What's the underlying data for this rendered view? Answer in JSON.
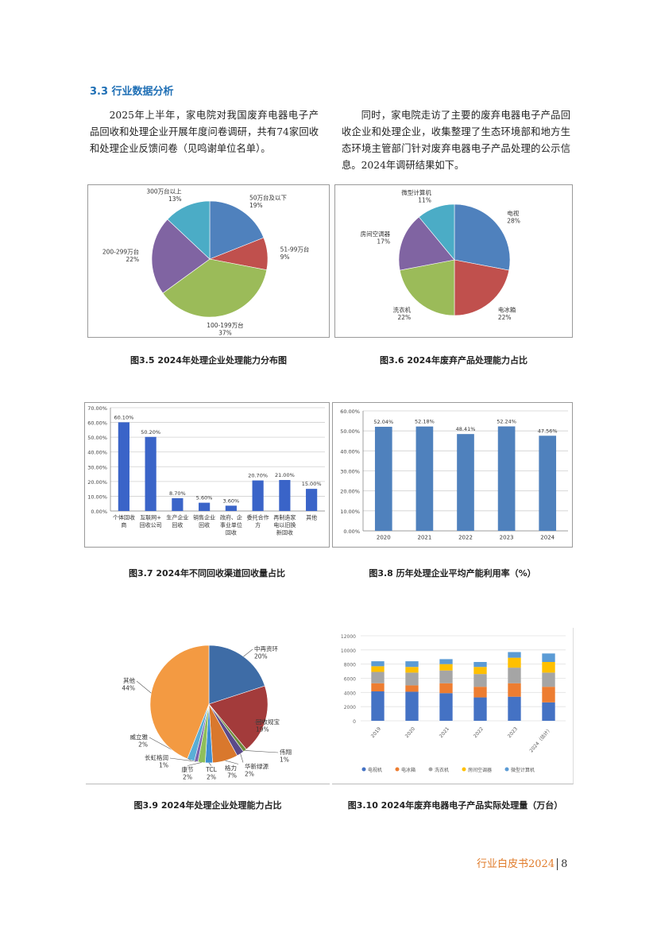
{
  "section": {
    "title": "3.3 行业数据分析"
  },
  "paragraphs": [
    "2025年上半年，家电院对我国废弃电器电子产品回收和处理企业开展年度问卷调研，共有74家回收和处理企业反馈问卷（见鸣谢单位名单）。",
    "同时，家电院走访了主要的废弃电器电子产品回收企业和处理企业，收集整理了生态环境部和地方生态环境主管部门针对废弃电器电子产品处理的公示信息。2024年调研结果如下。"
  ],
  "captions": [
    "图3.5 2024年处理企业处理能力分布图",
    "图3.6 2024年废弃产品处理能力占比",
    "图3.7 2024年不同回收渠道回收量占比",
    "图3.8 历年处理企业平均产能利用率（%）",
    "图3.9 2024年处理企业处理能力占比",
    "图3.10 2024年废弃电器电子产品实际处理量（万台）"
  ],
  "footer": {
    "title": "行业白皮书2024",
    "page": "8"
  },
  "chart_data": [
    {
      "type": "pie",
      "labels": [
        "50万台及以下",
        "51-99万台",
        "100-199万台",
        "200-299万台",
        "300万台以上"
      ],
      "values": [
        19,
        9,
        37,
        22,
        13
      ],
      "colors": [
        "#4f81bd",
        "#c0504d",
        "#9bbb59",
        "#8064a2",
        "#4bacc6"
      ]
    },
    {
      "type": "pie",
      "labels": [
        "电视",
        "电冰箱",
        "洗衣机",
        "房间空调器",
        "微型计算机"
      ],
      "values": [
        28,
        22,
        22,
        17,
        11
      ],
      "colors": [
        "#4f81bd",
        "#c0504d",
        "#9bbb59",
        "#8064a2",
        "#4bacc6"
      ]
    },
    {
      "type": "bar",
      "categories": [
        "个体回收商",
        "互联网+回收公司",
        "生产企业回收",
        "销售企业回收",
        "政府、企事业单位回收",
        "委托合作方",
        "再制造家电以旧换新回收",
        "其他"
      ],
      "values": [
        60.1,
        50.2,
        8.7,
        5.6,
        3.6,
        20.7,
        21.0,
        15.0
      ],
      "data_labels": [
        "60.10%",
        "50.20%",
        "8.70%",
        "5.60%",
        "3.60%",
        "20.70%",
        "21.00%",
        "15.00%"
      ],
      "ylim": [
        0,
        70
      ],
      "yticks": [
        "0.00%",
        "10.00%",
        "20.00%",
        "30.00%",
        "40.00%",
        "50.00%",
        "60.00%",
        "70.00%"
      ],
      "color": "#3a64c8",
      "grid": true
    },
    {
      "type": "bar",
      "categories": [
        "2020",
        "2021",
        "2022",
        "2023",
        "2024"
      ],
      "values": [
        52.04,
        52.18,
        48.41,
        52.24,
        47.56
      ],
      "data_labels": [
        "52.04%",
        "52.18%",
        "48.41%",
        "52.24%",
        "47.56%"
      ],
      "ylim": [
        0,
        60
      ],
      "yticks": [
        "0.00%",
        "10.00%",
        "20.00%",
        "30.00%",
        "40.00%",
        "50.00%",
        "60.00%"
      ],
      "color": "#4f81bd",
      "grid": true
    },
    {
      "type": "pie",
      "labels": [
        "中再资环",
        "回收规宝",
        "伟翔",
        "华新绿源",
        "格力",
        "TCL",
        "康节",
        "长虹格润",
        "威立雅",
        "其他"
      ],
      "values": [
        20,
        19,
        1,
        2,
        7,
        2,
        2,
        1,
        2,
        44
      ],
      "colors": [
        "#3e6ca6",
        "#a33b3b",
        "#6e8c3a",
        "#5b4a8a",
        "#d9782d",
        "#3f8fd2",
        "#8fbf5a",
        "#7a63b0",
        "#5aaed6",
        "#f39a42"
      ]
    },
    {
      "type": "bar",
      "stacked": true,
      "categories": [
        "2019",
        "2020",
        "2021",
        "2022",
        "2023",
        "2024（估计）"
      ],
      "series": [
        {
          "name": "电视机",
          "values": [
            4150,
            4100,
            3900,
            3300,
            3400,
            2600
          ],
          "color": "#4472c4"
        },
        {
          "name": "电冰箱",
          "values": [
            1150,
            900,
            1400,
            1500,
            1900,
            2200
          ],
          "color": "#ed7d31"
        },
        {
          "name": "洗衣机",
          "values": [
            1600,
            1800,
            1800,
            1800,
            2200,
            2000
          ],
          "color": "#a5a5a5"
        },
        {
          "name": "房间空调器",
          "values": [
            800,
            800,
            900,
            1000,
            1400,
            1500
          ],
          "color": "#ffc000"
        },
        {
          "name": "微型计算机",
          "values": [
            700,
            800,
            700,
            700,
            800,
            1200
          ],
          "color": "#5b9bd5"
        }
      ],
      "ylim": [
        0,
        12000
      ],
      "yticks": [
        "0",
        "2000",
        "4000",
        "6000",
        "8000",
        "10000",
        "12000"
      ],
      "grid": true,
      "legend": "bottom"
    }
  ]
}
